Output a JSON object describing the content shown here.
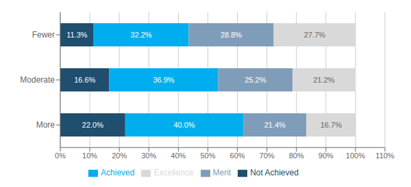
{
  "chart_data": {
    "type": "bar",
    "orientation": "horizontal",
    "stacked": true,
    "data_labels": true,
    "grid": true,
    "legend": "bottom",
    "categories": [
      "More",
      "Moderate",
      "Fewer"
    ],
    "series": [
      {
        "name": "Not Achieved",
        "color": "#1f4e6e",
        "values": [
          22.0,
          16.6,
          11.3
        ],
        "value_labels": [
          "22.0%",
          "16.6%",
          "11.3%"
        ]
      },
      {
        "name": "Achieved",
        "color": "#00aeef",
        "values": [
          40.0,
          36.9,
          32.2
        ],
        "value_labels": [
          "40.0%",
          "36.9%",
          "32.2%"
        ]
      },
      {
        "name": "Merit",
        "color": "#7f9db9",
        "values": [
          21.4,
          25.2,
          28.8
        ],
        "value_labels": [
          "21.4%",
          "25.2%",
          "28.8%"
        ]
      },
      {
        "name": "Excellence",
        "color": "#d9d9d9",
        "values": [
          16.7,
          21.2,
          27.7
        ],
        "value_labels": [
          "16.7%",
          "21.2%",
          "27.7%"
        ]
      }
    ],
    "xlim": [
      0,
      110
    ],
    "xticks": [
      {
        "value": 0,
        "label": "0%"
      },
      {
        "value": 10,
        "label": "10%"
      },
      {
        "value": 20,
        "label": "20%"
      },
      {
        "value": 30,
        "label": "30%"
      },
      {
        "value": 40,
        "label": "40%"
      },
      {
        "value": 50,
        "label": "50%"
      },
      {
        "value": 60,
        "label": "60%"
      },
      {
        "value": 70,
        "label": "70%"
      },
      {
        "value": 80,
        "label": "80%"
      },
      {
        "value": 90,
        "label": "90%"
      },
      {
        "value": 100,
        "label": "100%"
      },
      {
        "value": 110,
        "label": "110%"
      }
    ]
  }
}
